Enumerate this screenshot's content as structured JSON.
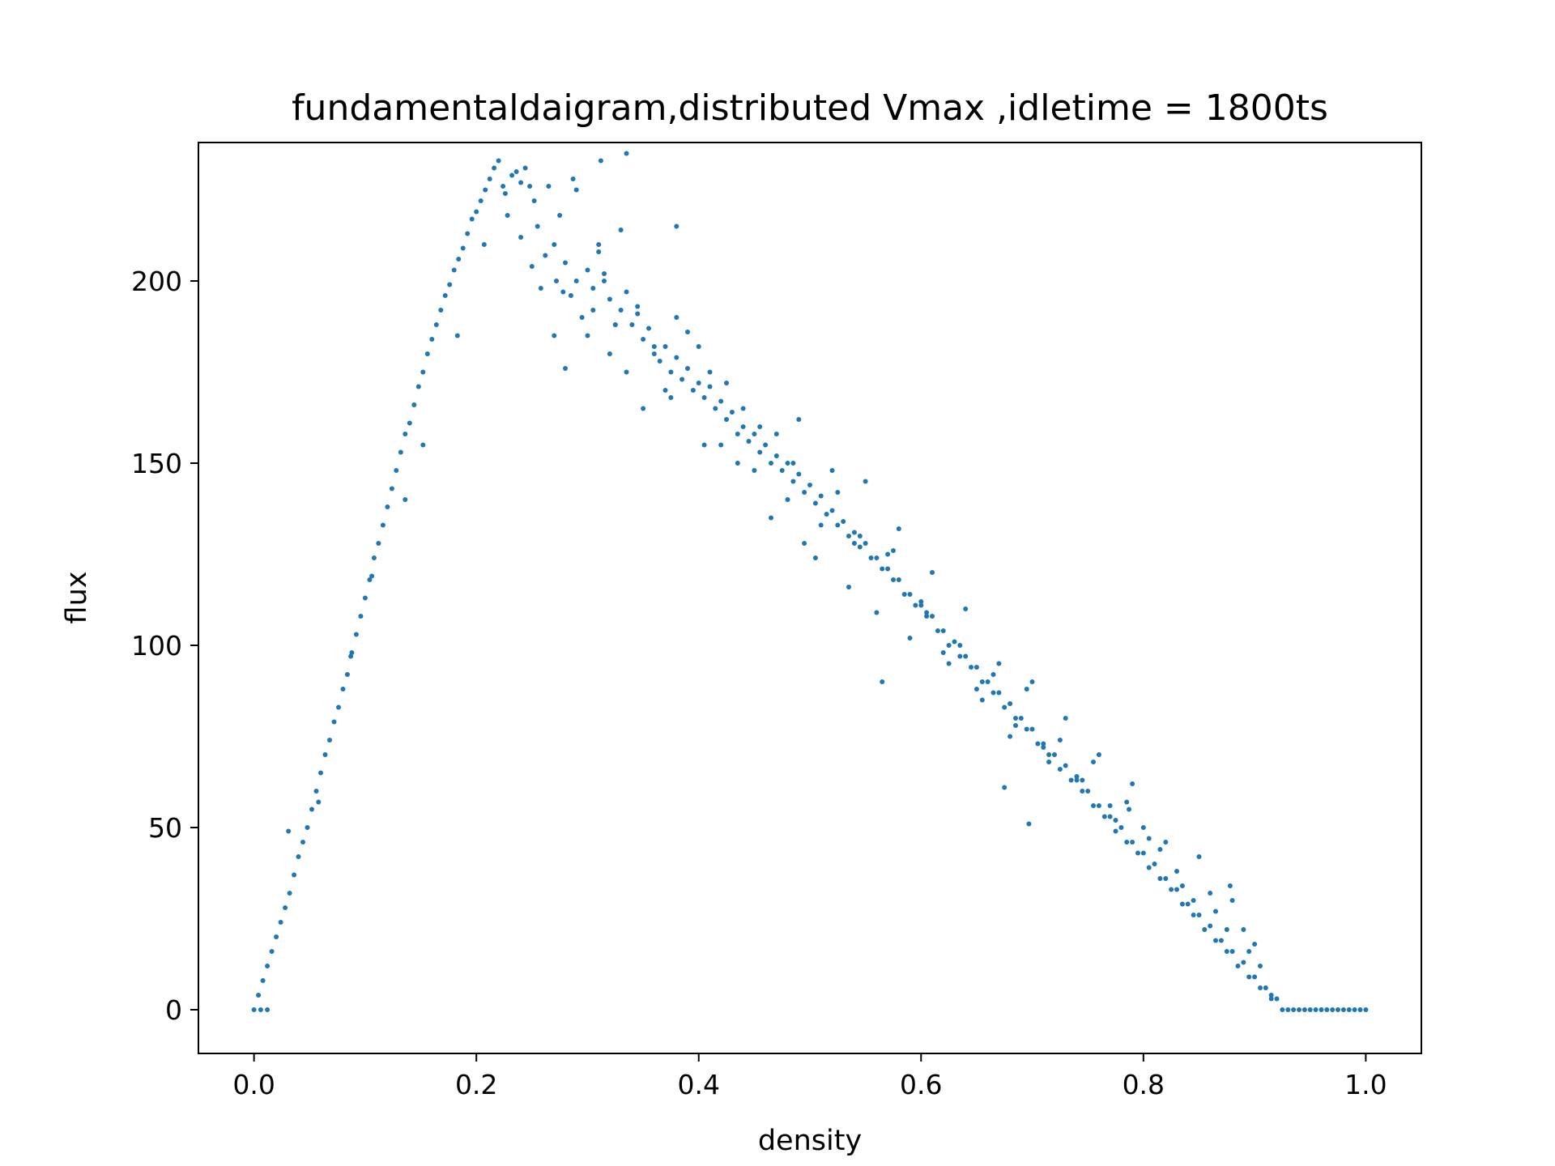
{
  "chart_data": {
    "type": "scatter",
    "title": "fundamentaldaigram,distributed Vmax ,idletime = 1800ts",
    "xlabel": "density",
    "ylabel": "flux",
    "xlim": [
      -0.05,
      1.05
    ],
    "ylim": [
      -12,
      238
    ],
    "xticks": [
      0.0,
      0.2,
      0.4,
      0.6,
      0.8,
      1.0
    ],
    "xtick_labels": [
      "0.0",
      "0.2",
      "0.4",
      "0.6",
      "0.8",
      "1.0"
    ],
    "yticks": [
      0,
      50,
      100,
      150,
      200
    ],
    "ytick_labels": [
      "0",
      "50",
      "100",
      "150",
      "200"
    ],
    "grid": false,
    "legend": "none",
    "color": "#1f77b4",
    "series": [
      {
        "x": [
          0.0,
          0.004,
          0.008,
          0.012,
          0.016,
          0.02,
          0.024,
          0.028,
          0.032,
          0.036,
          0.04,
          0.044,
          0.048,
          0.052,
          0.056,
          0.06,
          0.064,
          0.068,
          0.072,
          0.076,
          0.08,
          0.084,
          0.088,
          0.092,
          0.096,
          0.1,
          0.104,
          0.108,
          0.112,
          0.116,
          0.12,
          0.124,
          0.128,
          0.132,
          0.136,
          0.14,
          0.144,
          0.148,
          0.152,
          0.156,
          0.16,
          0.164,
          0.168,
          0.172,
          0.176,
          0.18,
          0.184,
          0.188,
          0.192,
          0.196,
          0.2,
          0.204,
          0.208,
          0.212,
          0.216,
          0.22,
          0.224,
          0.228,
          0.232,
          0.236,
          0.24,
          0.244,
          0.248,
          0.252,
          0.006,
          0.012,
          0.031,
          0.058,
          0.087,
          0.106,
          0.136,
          0.152,
          0.183,
          0.207,
          0.226,
          0.24,
          0.25,
          0.258,
          0.262,
          0.27,
          0.272,
          0.278,
          0.28,
          0.285,
          0.29,
          0.295,
          0.3,
          0.305,
          0.31,
          0.315,
          0.32,
          0.325,
          0.33,
          0.335,
          0.34,
          0.345,
          0.35,
          0.355,
          0.36,
          0.365,
          0.37,
          0.375,
          0.38,
          0.385,
          0.39,
          0.395,
          0.4,
          0.405,
          0.41,
          0.415,
          0.42,
          0.425,
          0.43,
          0.435,
          0.44,
          0.445,
          0.45,
          0.455,
          0.46,
          0.465,
          0.47,
          0.475,
          0.48,
          0.485,
          0.49,
          0.495,
          0.5,
          0.505,
          0.51,
          0.515,
          0.52,
          0.525,
          0.53,
          0.535,
          0.54,
          0.545,
          0.55,
          0.555,
          0.56,
          0.565,
          0.57,
          0.575,
          0.58,
          0.585,
          0.59,
          0.595,
          0.6,
          0.605,
          0.61,
          0.615,
          0.62,
          0.625,
          0.63,
          0.635,
          0.64,
          0.645,
          0.65,
          0.655,
          0.66,
          0.665,
          0.67,
          0.675,
          0.68,
          0.685,
          0.69,
          0.695,
          0.7,
          0.705,
          0.71,
          0.715,
          0.72,
          0.725,
          0.73,
          0.735,
          0.74,
          0.745,
          0.75,
          0.755,
          0.76,
          0.765,
          0.77,
          0.775,
          0.78,
          0.785,
          0.79,
          0.795,
          0.8,
          0.805,
          0.81,
          0.815,
          0.82,
          0.825,
          0.83,
          0.835,
          0.84,
          0.845,
          0.85,
          0.855,
          0.86,
          0.865,
          0.87,
          0.875,
          0.88,
          0.885,
          0.89,
          0.895,
          0.9,
          0.905,
          0.91,
          0.915,
          0.92,
          0.925,
          0.93,
          0.935,
          0.94,
          0.945,
          0.95,
          0.955,
          0.96,
          0.965,
          0.97,
          0.975,
          0.98,
          0.985,
          0.99,
          0.995,
          1.0,
          0.255,
          0.27,
          0.28,
          0.3,
          0.31,
          0.32,
          0.335,
          0.35,
          0.37,
          0.38,
          0.4,
          0.41,
          0.42,
          0.44,
          0.45,
          0.47,
          0.48,
          0.49,
          0.51,
          0.52,
          0.54,
          0.55,
          0.57,
          0.58,
          0.6,
          0.61,
          0.62,
          0.64,
          0.65,
          0.67,
          0.68,
          0.7,
          0.71,
          0.73,
          0.74,
          0.76,
          0.77,
          0.79,
          0.8,
          0.82,
          0.83,
          0.85,
          0.86,
          0.88,
          0.89,
          0.9,
          0.265,
          0.275,
          0.29,
          0.305,
          0.315,
          0.325,
          0.33,
          0.345,
          0.36,
          0.375,
          0.39,
          0.405,
          0.425,
          0.435,
          0.455,
          0.465,
          0.485,
          0.495,
          0.505,
          0.525,
          0.535,
          0.545,
          0.56,
          0.575,
          0.59,
          0.605,
          0.625,
          0.635,
          0.655,
          0.665,
          0.685,
          0.695,
          0.715,
          0.725,
          0.745,
          0.755,
          0.775,
          0.785,
          0.805,
          0.815,
          0.835,
          0.845,
          0.865,
          0.875,
          0.895,
          0.905,
          0.915,
          0.335,
          0.38,
          0.287,
          0.312,
          0.565,
          0.697,
          0.675,
          0.787,
          0.878
        ],
        "y": [
          0,
          4,
          8,
          12,
          16,
          20,
          24,
          28,
          32,
          37,
          42,
          46,
          50,
          55,
          60,
          65,
          70,
          74,
          79,
          83,
          88,
          92,
          98,
          103,
          108,
          113,
          118,
          124,
          128,
          133,
          138,
          143,
          148,
          153,
          158,
          161,
          166,
          171,
          175,
          180,
          184,
          188,
          192,
          196,
          199,
          203,
          206,
          209,
          213,
          217,
          219,
          222,
          225,
          228,
          231,
          233,
          226,
          218,
          229,
          230,
          227,
          231,
          226,
          222,
          0,
          0,
          49,
          57,
          97,
          119,
          140,
          155,
          185,
          210,
          224,
          212,
          204,
          198,
          207,
          210,
          200,
          197,
          205,
          196,
          200,
          190,
          203,
          198,
          210,
          202,
          195,
          188,
          192,
          197,
          188,
          191,
          184,
          187,
          180,
          178,
          182,
          175,
          179,
          173,
          176,
          170,
          172,
          168,
          171,
          165,
          167,
          162,
          164,
          158,
          160,
          156,
          158,
          153,
          155,
          150,
          152,
          148,
          150,
          145,
          147,
          142,
          144,
          139,
          141,
          136,
          137,
          133,
          134,
          130,
          131,
          127,
          128,
          124,
          124,
          121,
          121,
          118,
          118,
          114,
          114,
          111,
          111,
          108,
          108,
          104,
          104,
          100,
          101,
          97,
          97,
          94,
          94,
          90,
          90,
          87,
          87,
          83,
          84,
          80,
          80,
          77,
          77,
          73,
          73,
          70,
          70,
          66,
          67,
          63,
          63,
          60,
          60,
          56,
          56,
          53,
          53,
          49,
          50,
          46,
          46,
          43,
          43,
          39,
          40,
          36,
          36,
          33,
          33,
          29,
          29,
          26,
          26,
          22,
          23,
          19,
          19,
          16,
          16,
          12,
          13,
          9,
          9,
          6,
          6,
          3,
          3,
          0,
          0,
          0,
          0,
          0,
          0,
          0,
          0,
          0,
          0,
          0,
          0,
          0,
          0,
          0,
          0,
          215,
          185,
          176,
          185,
          208,
          180,
          175,
          165,
          170,
          190,
          182,
          175,
          155,
          165,
          148,
          158,
          140,
          162,
          133,
          148,
          128,
          145,
          125,
          132,
          112,
          120,
          98,
          110,
          88,
          95,
          75,
          90,
          72,
          80,
          64,
          70,
          56,
          62,
          50,
          46,
          38,
          42,
          32,
          30,
          22,
          18,
          226,
          218,
          225,
          192,
          200,
          188,
          214,
          193,
          182,
          168,
          186,
          155,
          172,
          150,
          160,
          135,
          150,
          128,
          124,
          142,
          116,
          130,
          109,
          126,
          102,
          109,
          95,
          100,
          85,
          92,
          78,
          88,
          68,
          74,
          63,
          68,
          52,
          57,
          47,
          44,
          34,
          30,
          27,
          22,
          16,
          12,
          4,
          235,
          215,
          228,
          233,
          90,
          51,
          61,
          55,
          34
        ]
      }
    ]
  }
}
